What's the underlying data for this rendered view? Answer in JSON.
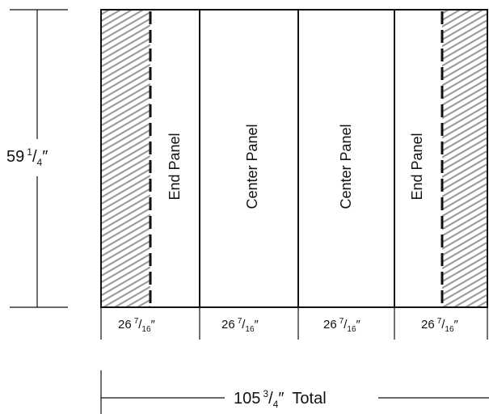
{
  "diagram": {
    "height": {
      "whole": "59",
      "num": "1",
      "den": "4",
      "unit": "″"
    },
    "panels": [
      {
        "label": "End Panel",
        "hatch_side": "left"
      },
      {
        "label": "Center Panel"
      },
      {
        "label": "Center Panel"
      },
      {
        "label": "End Panel",
        "hatch_side": "right"
      }
    ],
    "panel_widths": [
      {
        "whole": "26",
        "num": "7",
        "den": "16",
        "unit": "″"
      },
      {
        "whole": "26",
        "num": "7",
        "den": "16",
        "unit": "″"
      },
      {
        "whole": "26",
        "num": "7",
        "den": "16",
        "unit": "″"
      },
      {
        "whole": "26",
        "num": "7",
        "den": "16",
        "unit": "″"
      }
    ],
    "total": {
      "whole": "105",
      "num": "3",
      "den": "4",
      "unit": "″",
      "suffix": "Total"
    },
    "colors": {
      "line": "#111111",
      "hatch": "#9a9a9a",
      "background": "#ffffff"
    }
  }
}
